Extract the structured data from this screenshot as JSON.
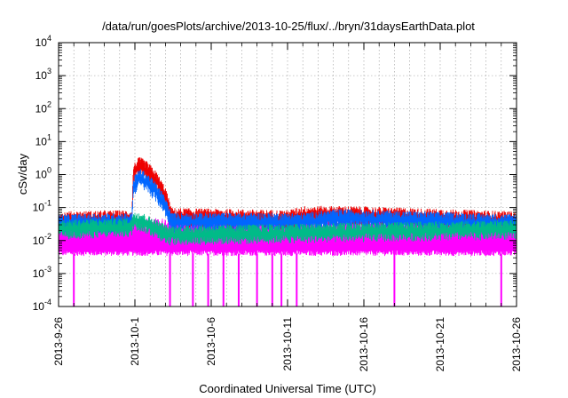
{
  "chart_data": {
    "type": "line",
    "title": "/data/run/goesPlots/archive/2013-10-25/flux/../bryn/31daysEarthData.plot",
    "xlabel": "Coordinated Universal Time (UTC)",
    "ylabel": "cSv/day",
    "y_scale": "log",
    "ylim": [
      0.0001,
      10000
    ],
    "xlim": [
      "2013-09-26",
      "2013-10-26"
    ],
    "grid": true,
    "x_ticks": [
      "2013-9-26",
      "2013-10-1",
      "2013-10-6",
      "2013-10-11",
      "2013-10-16",
      "2013-10-21",
      "2013-10-26"
    ],
    "y_ticks": [
      {
        "base": "10",
        "exp": "-4",
        "value": 0.0001
      },
      {
        "base": "10",
        "exp": "-3",
        "value": 0.001
      },
      {
        "base": "10",
        "exp": "-2",
        "value": 0.01
      },
      {
        "base": "10",
        "exp": "-1",
        "value": 0.1
      },
      {
        "base": "10",
        "exp": "0",
        "value": 1
      },
      {
        "base": "10",
        "exp": "1",
        "value": 10
      },
      {
        "base": "10",
        "exp": "2",
        "value": 100
      },
      {
        "base": "10",
        "exp": "3",
        "value": 1000
      },
      {
        "base": "10",
        "exp": "4",
        "value": 10000
      }
    ],
    "series": [
      {
        "color": "#ee0000",
        "baseline": 0.055,
        "points": [
          [
            "2013-09-26",
            0.055
          ],
          [
            "2013-09-30.8",
            0.06
          ],
          [
            "2013-09-30.9",
            1.5
          ],
          [
            "2013-10-01.3",
            2.5
          ],
          [
            "2013-10-01.8",
            1.8
          ],
          [
            "2013-10-02.4",
            0.9
          ],
          [
            "2013-10-03.0",
            0.3
          ],
          [
            "2013-10-03.4",
            0.07
          ],
          [
            "2013-10-11",
            0.06
          ],
          [
            "2013-10-12",
            0.08
          ],
          [
            "2013-10-15",
            0.08
          ],
          [
            "2013-10-26",
            0.055
          ]
        ]
      },
      {
        "color": "#0066ff",
        "baseline": 0.045,
        "points": [
          [
            "2013-09-26",
            0.045
          ],
          [
            "2013-09-30.8",
            0.05
          ],
          [
            "2013-09-30.9",
            0.6
          ],
          [
            "2013-10-01.3",
            1.1
          ],
          [
            "2013-10-01.8",
            0.8
          ],
          [
            "2013-10-02.4",
            0.4
          ],
          [
            "2013-10-03.0",
            0.15
          ],
          [
            "2013-10-03.4",
            0.05
          ],
          [
            "2013-10-12",
            0.05
          ],
          [
            "2013-10-14.5",
            0.065
          ],
          [
            "2013-10-26",
            0.045
          ]
        ]
      },
      {
        "color": "#00bb88",
        "baseline": 0.03,
        "points": [
          [
            "2013-09-26",
            0.03
          ],
          [
            "2013-09-30.8",
            0.035
          ],
          [
            "2013-09-30.9",
            0.06
          ],
          [
            "2013-10-01.5",
            0.05
          ],
          [
            "2013-10-02.2",
            0.035
          ],
          [
            "2013-10-03.2",
            0.02
          ],
          [
            "2013-10-26",
            0.03
          ]
        ]
      },
      {
        "color": "#ff00ff",
        "baseline": 0.004,
        "upper": 0.03,
        "dropouts": [
          "2013-09-27.0",
          "2013-10-03.3",
          "2013-10-04.8",
          "2013-10-05.8",
          "2013-10-06.8",
          "2013-10-07.8",
          "2013-10-09.0",
          "2013-10-10.0",
          "2013-10-10.6",
          "2013-10-11.6",
          "2013-10-18.0",
          "2013-10-25.0"
        ]
      }
    ]
  }
}
